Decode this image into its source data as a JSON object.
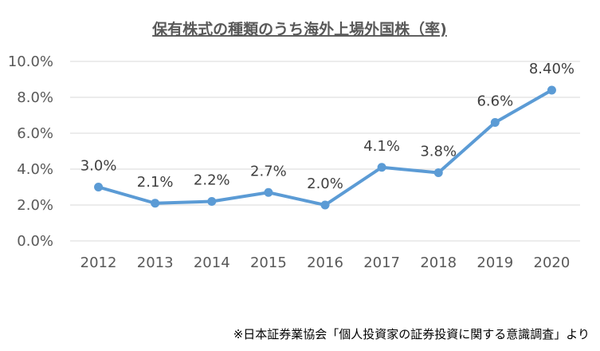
{
  "chart_data": {
    "type": "line",
    "title": "保有株式の種類のうち海外上場外国株（率)",
    "categories": [
      "2012",
      "2013",
      "2014",
      "2015",
      "2016",
      "2017",
      "2018",
      "2019",
      "2020"
    ],
    "series": [
      {
        "values": [
          3.0,
          2.1,
          2.2,
          2.7,
          2.0,
          4.1,
          3.8,
          6.6,
          8.4
        ],
        "labels": [
          "3.0%",
          "2.1%",
          "2.2%",
          "2.7%",
          "2.0%",
          "4.1%",
          "3.8%",
          "6.6%",
          "8.40%"
        ]
      }
    ],
    "ylim": [
      0,
      10
    ],
    "yticks": [
      0,
      2,
      4,
      6,
      8,
      10
    ],
    "ytick_labels": [
      "0.0%",
      "2.0%",
      "4.0%",
      "6.0%",
      "8.0%",
      "10.0%"
    ],
    "grid": true,
    "line_color": "#5b9bd5",
    "grid_color": "#d9d9d9",
    "source_note": "※日本証券業協会「個人投資家の証券投資に関する意識調査」より"
  }
}
